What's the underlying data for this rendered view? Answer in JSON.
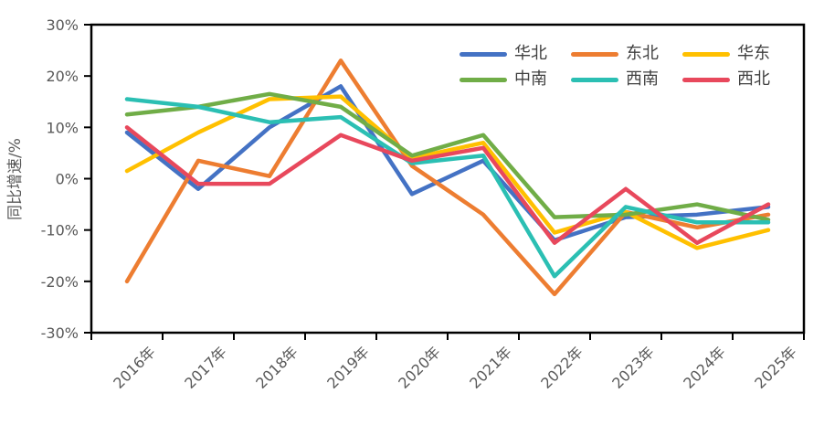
{
  "chart": {
    "background_color": "#ffffff",
    "axis_color": "#000000",
    "tick_label_color": "#595959",
    "legend_text_color": "#404040"
  },
  "chart_data": {
    "type": "line",
    "title": "",
    "xlabel": "",
    "ylabel": "同比增速/%",
    "ylim": [
      -30,
      30
    ],
    "y_tick_step": 10,
    "y_tick_labels": [
      "30%",
      "20%",
      "10%",
      "0%",
      "-10%",
      "-20%",
      "-30%"
    ],
    "categories": [
      "2016年",
      "2017年",
      "2018年",
      "2019年",
      "2020年",
      "2021年",
      "2022年",
      "2023年",
      "2024年",
      "2025年"
    ],
    "grid": false,
    "legend_position": "top-right-inside",
    "legend_rows": [
      [
        "华北",
        "东北",
        "华东"
      ],
      [
        "中南",
        "西南",
        "西北"
      ]
    ],
    "series": [
      {
        "name": "华北",
        "color": "#4472C4",
        "values": [
          9,
          -2,
          10,
          18,
          -3,
          3.5,
          -12,
          -7.5,
          -7,
          -5.5
        ]
      },
      {
        "name": "东北",
        "color": "#ED7D31",
        "values": [
          -20,
          3.5,
          0.5,
          23,
          2.5,
          -7,
          -22.5,
          -6.5,
          -9.5,
          -7
        ]
      },
      {
        "name": "华东",
        "color": "#FFC000",
        "values": [
          1.5,
          9,
          15.5,
          16,
          4,
          7,
          -10.5,
          -6.5,
          -13.5,
          -10
        ]
      },
      {
        "name": "中南",
        "color": "#70AD47",
        "values": [
          12.5,
          14,
          16.5,
          14,
          4.5,
          8.5,
          -7.5,
          -7,
          -5,
          -8
        ]
      },
      {
        "name": "西南",
        "color": "#2BBFB3",
        "values": [
          15.5,
          14,
          11,
          12,
          3,
          4.5,
          -19,
          -5.5,
          -8.5,
          -8.5
        ]
      },
      {
        "name": "西北",
        "color": "#E8485C",
        "values": [
          10,
          -1,
          -1,
          8.5,
          3.5,
          6,
          -12.5,
          -2,
          -12.5,
          -5
        ]
      }
    ]
  }
}
